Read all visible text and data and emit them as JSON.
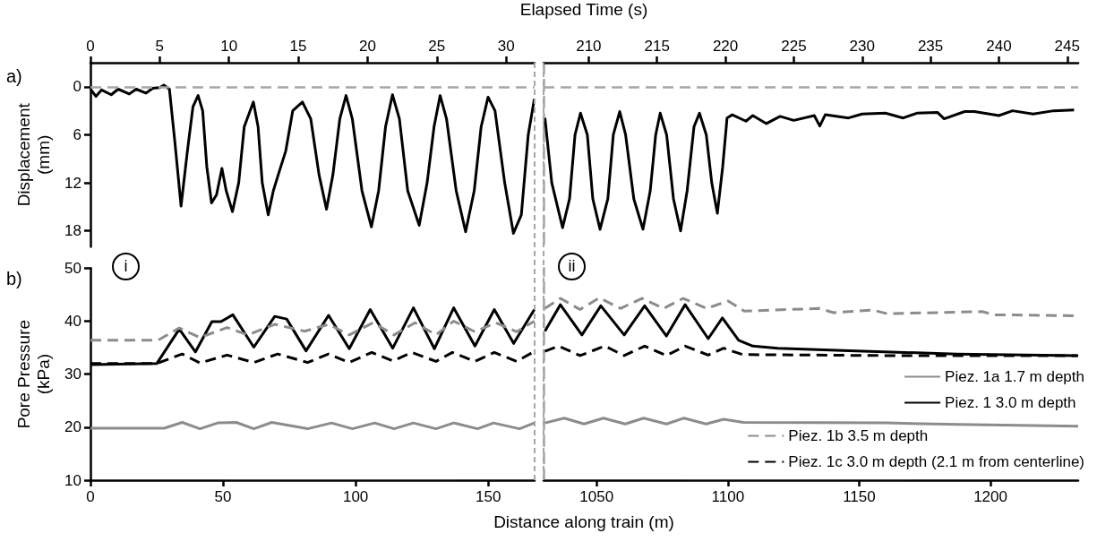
{
  "chart_data": [
    {
      "type": "line",
      "title": "a)",
      "xlabel": "Elapsed Time (s)",
      "ylabel": "Displacement (mm)",
      "xlim": [
        0,
        32.06
      ],
      "xticks": [
        0,
        5,
        10,
        15,
        20,
        25,
        30
      ],
      "ylim": [
        20,
        -3
      ],
      "yticks": [
        0,
        6,
        12,
        18
      ],
      "grid": false,
      "marker": "none",
      "line_style": "solid",
      "ref_lines": [
        {
          "axis": "y",
          "value": 0,
          "color": "#a6a6a6",
          "line_style": "dashed"
        }
      ],
      "series": [
        {
          "color": "#000000",
          "x": [
            0,
            0.4,
            0.8,
            1.5,
            2.0,
            2.8,
            3.3,
            4.0,
            4.5,
            5.0,
            5.3,
            5.7,
            6.1,
            6.54,
            7.0,
            7.4,
            7.77,
            8.1,
            8.4,
            8.74,
            9.1,
            9.49,
            9.8,
            10.25,
            10.7,
            11.1,
            11.76,
            12.1,
            12.4,
            12.83,
            13.2,
            13.59,
            14.1,
            14.6,
            15.3,
            15.9,
            16.5,
            17.04,
            17.5,
            18.0,
            18.45,
            18.9,
            19.6,
            20.28,
            20.8,
            21.3,
            21.8,
            22.3,
            22.9,
            23.73,
            24.3,
            24.8,
            25.24,
            25.7,
            26.4,
            27.08,
            27.7,
            28.2,
            28.7,
            29.2,
            29.9,
            30.53,
            31.1,
            31.6,
            32.04
          ],
          "values": [
            0.3,
            1.2,
            0.4,
            1.0,
            0.3,
            0.9,
            0.3,
            0.8,
            0.2,
            0.1,
            -0.2,
            0.3,
            7,
            14.9,
            8,
            2.5,
            1.1,
            3,
            10,
            14.5,
            13.5,
            10.2,
            13,
            15.6,
            12,
            5,
            1.9,
            5,
            12,
            16.0,
            13,
            10.8,
            8,
            3,
            1.9,
            4,
            11,
            15.3,
            11,
            4,
            1.1,
            4,
            13,
            17.5,
            13,
            5,
            1.0,
            4,
            13,
            17.3,
            12,
            5,
            1.1,
            4,
            13,
            18.1,
            13,
            5,
            1.3,
            3,
            12,
            18.3,
            16,
            6,
            1.5
          ]
        }
      ]
    },
    {
      "type": "line",
      "xlim": [
        206.7,
        245.8
      ],
      "xticks": [
        210,
        215,
        220,
        225,
        230,
        235,
        240,
        245
      ],
      "ylim": [
        20,
        -3
      ],
      "tick_labels": "x",
      "grid": false,
      "marker": "none",
      "line_style": "solid",
      "ref_lines": [
        {
          "axis": "y",
          "value": 0,
          "color": "#a6a6a6",
          "line_style": "dashed"
        }
      ],
      "series": [
        {
          "color": "#000000",
          "x": [
            206.8,
            207.3,
            208.09,
            208.6,
            209.0,
            209.4,
            209.9,
            210.3,
            210.83,
            211.4,
            211.8,
            212.27,
            212.7,
            213.3,
            213.97,
            214.5,
            214.9,
            215.23,
            215.7,
            216.2,
            216.72,
            217.2,
            217.7,
            218.1,
            218.6,
            219.0,
            219.41,
            219.8,
            220.12,
            220.5,
            221.5,
            222,
            223,
            224,
            225,
            226.5,
            226.9,
            227.3,
            229,
            230,
            231.7,
            233,
            234,
            235.5,
            236,
            237.5,
            238.2,
            240,
            241,
            242.5,
            244,
            245.5
          ],
          "values": [
            3.9,
            12,
            17.6,
            14,
            6,
            3.3,
            6,
            14,
            17.8,
            14,
            6,
            3.1,
            6,
            14,
            17.8,
            13,
            6,
            3.3,
            6,
            14,
            18.0,
            13,
            5,
            3.3,
            6,
            12,
            15.8,
            10,
            3.9,
            3.5,
            4.3,
            3.6,
            4.6,
            3.7,
            4.2,
            3.6,
            4.9,
            3.5,
            3.9,
            3.4,
            3.3,
            3.9,
            3.3,
            3.2,
            4.0,
            3.1,
            3.1,
            3.6,
            3.0,
            3.4,
            3.0,
            2.9
          ]
        }
      ]
    },
    {
      "type": "line",
      "title": "b)",
      "xlabel": "Distance along train (m)",
      "ylabel": "Pore Pressure (kPa)",
      "xlim": [
        0,
        167.5
      ],
      "xticks": [
        0,
        50,
        100,
        150
      ],
      "ylim": [
        10,
        50
      ],
      "yticks": [
        10,
        20,
        30,
        40,
        50
      ],
      "grid": false,
      "marker": "none",
      "annotations": [
        "i"
      ],
      "series": [
        {
          "color": "#8c8c8c",
          "line_style": "solid",
          "x": [
            0,
            27.8,
            34.6,
            41.3,
            48,
            55,
            61.6,
            68.4,
            81.9,
            90.9,
            98.8,
            107.2,
            114.5,
            121.8,
            130.3,
            137,
            146,
            152,
            161.8,
            167.4
          ],
          "values": [
            19.8,
            19.8,
            20.9,
            19.7,
            20.8,
            20.9,
            19.7,
            20.9,
            19.7,
            20.8,
            19.7,
            20.8,
            19.7,
            20.8,
            19.7,
            20.8,
            19.7,
            20.8,
            19.7,
            20.8
          ]
        },
        {
          "color": "#000000",
          "line_style": "solid",
          "x": [
            0,
            25.0,
            33.5,
            39.6,
            45.8,
            49.2,
            53.7,
            61.6,
            69.5,
            74,
            81.3,
            89.8,
            97.6,
            105.5,
            114,
            121.8,
            129.7,
            137,
            145,
            152.3,
            159.6,
            167.4
          ],
          "values": [
            31.8,
            32.0,
            38.5,
            34.2,
            39.9,
            39.9,
            41.2,
            35.1,
            40.9,
            40.4,
            34.4,
            41.1,
            34.8,
            42.2,
            34.9,
            42.5,
            34.8,
            42.5,
            35.3,
            42.2,
            35.8,
            42.2
          ]
        },
        {
          "color": "#8c8c8c",
          "line_style": "dashed",
          "x": [
            0,
            25.5,
            33.5,
            41.3,
            51.5,
            59.3,
            69.5,
            80.8,
            89.8,
            97.6,
            106.6,
            114.5,
            122.4,
            130.3,
            137,
            145,
            152.8,
            160.7,
            167.4
          ],
          "values": [
            36.4,
            36.4,
            38.7,
            36.9,
            38.8,
            37.4,
            39.4,
            38.1,
            39.4,
            37.4,
            39.7,
            37.4,
            39.7,
            37.4,
            40.0,
            38.0,
            39.7,
            38.0,
            40.0
          ]
        },
        {
          "color": "#000000",
          "line_style": "dashed",
          "x": [
            0,
            25.0,
            34.6,
            41.3,
            51.5,
            61.6,
            70.6,
            81.9,
            89.8,
            97.6,
            106.1,
            114,
            121.3,
            130.3,
            136.5,
            145,
            152.3,
            160.7,
            167.4
          ],
          "values": [
            32.0,
            32.0,
            33.8,
            32.1,
            33.6,
            32.2,
            33.8,
            32.2,
            33.8,
            32.2,
            34.1,
            32.5,
            34.1,
            32.4,
            34.1,
            32.4,
            34.1,
            32.4,
            34.3
          ]
        }
      ]
    },
    {
      "type": "line",
      "xlim": [
        1029.8,
        1233.4
      ],
      "xticks": [
        1050,
        1100,
        1150,
        1200
      ],
      "ylim": [
        10,
        50
      ],
      "tick_labels": "x",
      "grid": false,
      "marker": "none",
      "legend": "bottom right",
      "annotations": [
        "ii"
      ],
      "series": [
        {
          "name": "Piez. 1a 1.7 m depth",
          "color": "#8c8c8c",
          "line_style": "solid",
          "x": [
            1030.3,
            1037.7,
            1045.2,
            1052.6,
            1060.9,
            1067.9,
            1076.6,
            1083.3,
            1091.7,
            1098.4,
            1105.9,
            1160.5,
            1187.8,
            1233.4
          ],
          "values": [
            20.8,
            21.7,
            20.6,
            21.7,
            20.6,
            21.7,
            20.6,
            21.7,
            20.6,
            21.5,
            20.9,
            20.8,
            20.5,
            20.2
          ]
        },
        {
          "name": "Piez. 1 3.0 m depth",
          "color": "#000000",
          "line_style": "solid",
          "x": [
            1030.3,
            1036.2,
            1044.4,
            1051.6,
            1060.5,
            1068.3,
            1076.6,
            1083.7,
            1092.5,
            1097.9,
            1104.1,
            1109.5,
            1119,
            1146.3,
            1187.2,
            1233
          ],
          "values": [
            38.1,
            43.1,
            37.4,
            42.9,
            37.4,
            42.9,
            37.2,
            43.1,
            36.7,
            40.6,
            36.4,
            35.3,
            34.9,
            34.4,
            33.8,
            33.5
          ]
        },
        {
          "name": "Piez. 1b 3.5 m depth",
          "color": "#8c8c8c",
          "line_style": "dashed",
          "x": [
            1030.3,
            1036.2,
            1043.7,
            1051,
            1059.1,
            1067.3,
            1075.5,
            1083,
            1091.9,
            1100.1,
            1106.2,
            1134.8,
            1140.2,
            1155.2,
            1160.6,
            1196.8,
            1201.5,
            1233.4
          ],
          "values": [
            42.4,
            44.3,
            42.2,
            44.4,
            42.4,
            44.3,
            42.4,
            44.3,
            42.4,
            43.8,
            41.9,
            42.4,
            41.6,
            42.1,
            41.4,
            41.8,
            41.2,
            41.0
          ]
        },
        {
          "name": "Piez. 1c 3.0 m depth (2.1 m from centerline)",
          "color": "#000000",
          "line_style": "dashed",
          "x": [
            1030.3,
            1035.5,
            1043.7,
            1053.1,
            1060.5,
            1068.3,
            1076.6,
            1083.7,
            1092.5,
            1098.4,
            1105.5,
            1160.5,
            1233.4
          ],
          "values": [
            34.3,
            35.3,
            33.5,
            35.3,
            33.5,
            35.3,
            33.5,
            35.3,
            33.6,
            34.9,
            33.7,
            33.5,
            33.5
          ]
        }
      ]
    }
  ]
}
